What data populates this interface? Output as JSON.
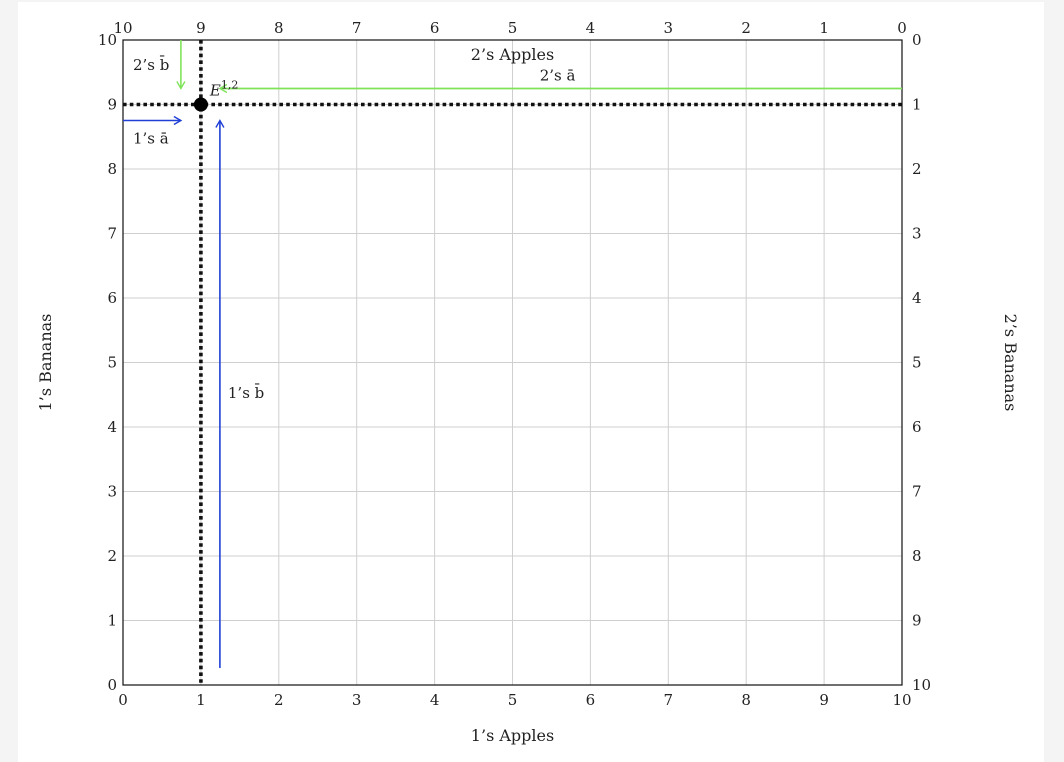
{
  "diagram": {
    "type": "edgeworth-box",
    "x_bottom": {
      "label": "1’s Apples",
      "range": [
        0,
        10
      ],
      "ticks": [
        0,
        1,
        2,
        3,
        4,
        5,
        6,
        7,
        8,
        9,
        10
      ]
    },
    "y_left": {
      "label": "1’s Bananas",
      "range": [
        0,
        10
      ],
      "ticks": [
        0,
        1,
        2,
        3,
        4,
        5,
        6,
        7,
        8,
        9,
        10
      ]
    },
    "x_top": {
      "label": "2’s Apples",
      "range": [
        10,
        0
      ],
      "ticks": [
        10,
        9,
        8,
        7,
        6,
        5,
        4,
        3,
        2,
        1,
        0
      ]
    },
    "y_right": {
      "label": "2’s Bananas",
      "range": [
        0,
        10
      ],
      "ticks": [
        0,
        1,
        2,
        3,
        4,
        5,
        6,
        7,
        8,
        9,
        10
      ]
    },
    "grid": true,
    "endowment": {
      "label": "E",
      "superscript": "1,2",
      "x": 1,
      "y": 9
    },
    "annotations": {
      "one_a": {
        "text": "1’s ā",
        "color": "#1f3fd6"
      },
      "one_b": {
        "text": "1’s b̄",
        "color": "#1f3fd6"
      },
      "two_a": {
        "text": "2’s ā",
        "color": "#7fe35a"
      },
      "two_b": {
        "text": "2’s b̄",
        "color": "#7fe35a"
      }
    },
    "colors": {
      "grid": "#cfcfcf",
      "frame": "#111111",
      "dotted": "#111111",
      "agent1_arrow": "#1f3fd6",
      "agent2_arrow": "#7fe35a"
    }
  }
}
